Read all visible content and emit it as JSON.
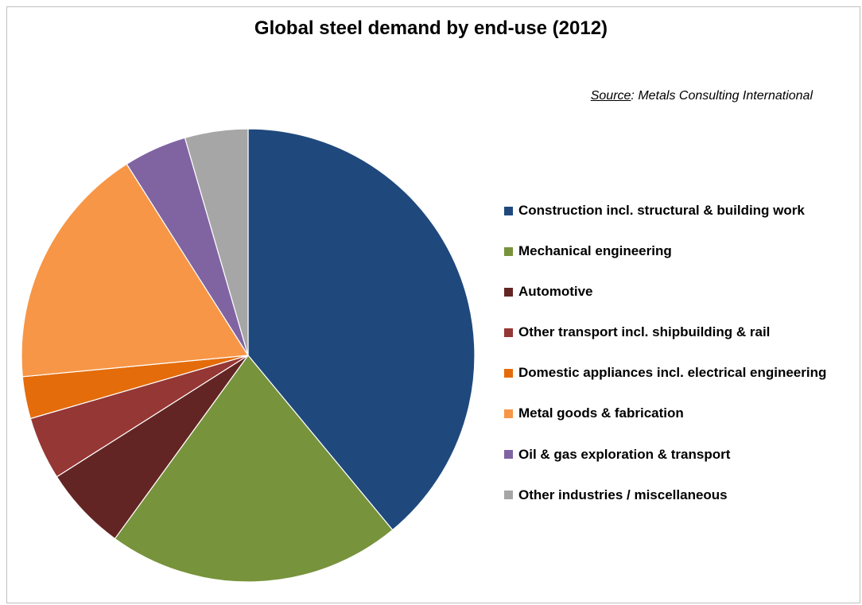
{
  "chart_data": {
    "type": "pie",
    "title": "Global steel demand by end-use (2012)",
    "source_label": "Source",
    "source_text": ": Metals Consulting International",
    "legend_position": "right",
    "slices": [
      {
        "label": "Construction incl. structural & building work",
        "value": 39,
        "color": "#1F497D"
      },
      {
        "label": "Mechanical engineering",
        "value": 21,
        "color": "#77933C"
      },
      {
        "label": "Automotive",
        "value": 6,
        "color": "#632523"
      },
      {
        "label": "Other transport incl. shipbuilding & rail",
        "value": 4.5,
        "color": "#953735"
      },
      {
        "label": "Domestic appliances incl. electrical engineering",
        "value": 3,
        "color": "#E46C0A"
      },
      {
        "label": "Metal goods & fabrication",
        "value": 17.5,
        "color": "#F79646"
      },
      {
        "label": "Oil & gas exploration & transport",
        "value": 4.5,
        "color": "#8064A2"
      },
      {
        "label": "Other industries / miscellaneous",
        "value": 4.5,
        "color": "#A6A6A6"
      }
    ]
  }
}
